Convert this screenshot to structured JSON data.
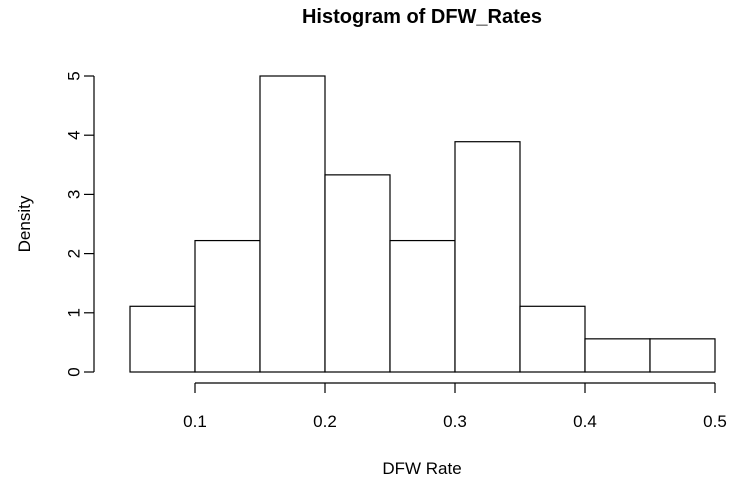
{
  "chart_data": {
    "type": "bar",
    "title": "Histogram of DFW_Rates",
    "xlabel": "DFW Rate",
    "ylabel": "Density",
    "bin_edges": [
      0.05,
      0.1,
      0.15,
      0.2,
      0.25,
      0.3,
      0.35,
      0.4,
      0.45,
      0.5
    ],
    "values": [
      1.11,
      2.22,
      5.0,
      3.33,
      2.22,
      3.89,
      1.11,
      0.56,
      0.56
    ],
    "xlim": [
      0.05,
      0.5
    ],
    "ylim": [
      0,
      5
    ],
    "x_ticks": [
      0.1,
      0.2,
      0.3,
      0.4,
      0.5
    ],
    "x_tick_labels": [
      "0.1",
      "0.2",
      "0.3",
      "0.4",
      "0.5"
    ],
    "y_ticks": [
      0,
      1,
      2,
      3,
      4,
      5
    ],
    "y_tick_labels": [
      "0",
      "1",
      "2",
      "3",
      "4",
      "5"
    ],
    "grid": false,
    "legend": "none",
    "bar_fill": "#ffffff",
    "bar_stroke": "#000000"
  }
}
